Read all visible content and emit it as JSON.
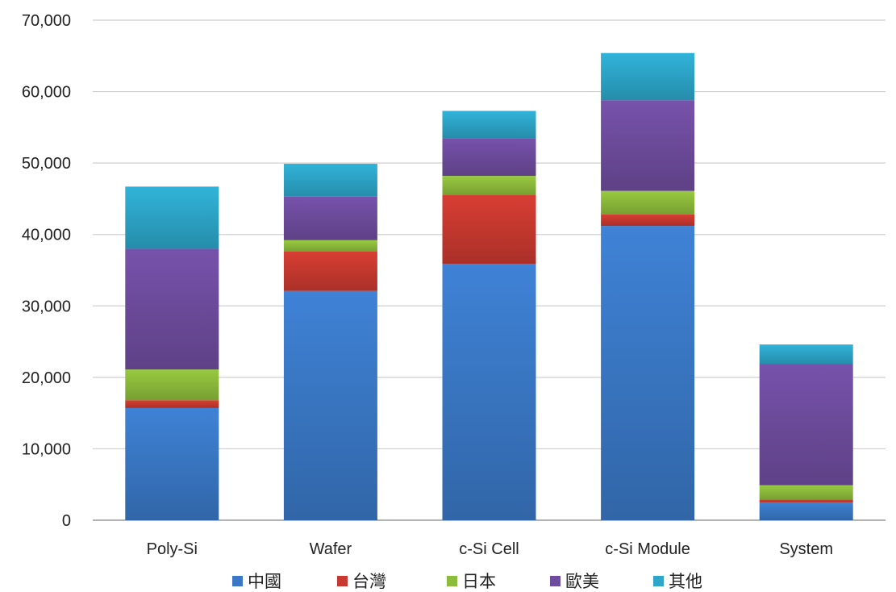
{
  "chart_data": {
    "type": "bar",
    "stacked": true,
    "categories": [
      "Poly-Si",
      "Wafer",
      "c-Si Cell",
      "c-Si Module",
      "System"
    ],
    "series": [
      {
        "name": "中國",
        "color": "#3A78C6",
        "values": [
          15700,
          32100,
          35900,
          41200,
          2500
        ]
      },
      {
        "name": "台灣",
        "color": "#C8392F",
        "values": [
          1100,
          5500,
          9600,
          1600,
          400
        ]
      },
      {
        "name": "日本",
        "color": "#8DBB3B",
        "values": [
          4300,
          1600,
          2700,
          3300,
          2000
        ]
      },
      {
        "name": "歐美",
        "color": "#6E4C9E",
        "values": [
          16900,
          6100,
          5300,
          12700,
          17000
        ]
      },
      {
        "name": "其他",
        "color": "#2DA6C9",
        "values": [
          8700,
          4600,
          3800,
          6600,
          2700
        ]
      }
    ],
    "ylim": [
      0,
      70000
    ],
    "yticks": [
      "0",
      "10,000",
      "20,000",
      "30,000",
      "40,000",
      "50,000",
      "60,000",
      "70,000"
    ],
    "grid": true,
    "legend": "bottom",
    "title": "",
    "xlabel": "",
    "ylabel": ""
  }
}
